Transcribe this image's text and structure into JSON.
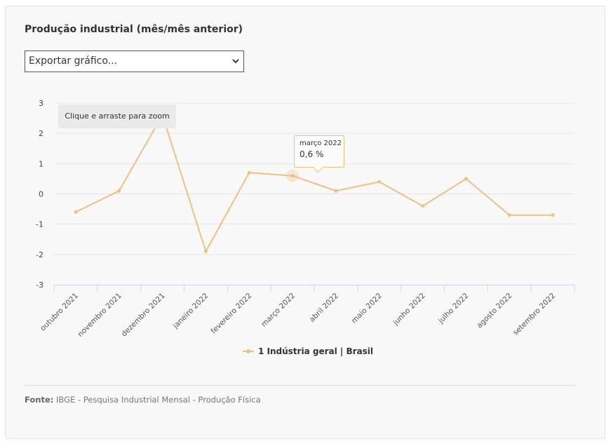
{
  "title": "Produção industrial (mês/mês anterior)",
  "export_select": {
    "selected": "Exportar gráfico...",
    "icon": "chevron-down-icon"
  },
  "zoom_hint": "Clique e arraste para zoom",
  "tooltip": {
    "label": "março 2022",
    "value": "0,6 %"
  },
  "legend": {
    "label": "1 Indústria geral | Brasil"
  },
  "source": {
    "label": "Fonte:",
    "text": " IBGE - Pesquisa Industrial Mensal - Produção Física"
  },
  "colors": {
    "series": "#efc07e",
    "grid": "#e6e6e6",
    "axis": "#ccd6eb",
    "card": "#f8f8f8"
  },
  "chart_data": {
    "type": "line",
    "title": "Produção industrial (mês/mês anterior)",
    "xlabel": "",
    "ylabel": "",
    "ylim": [
      -3,
      3
    ],
    "yticks": [
      3,
      2,
      1,
      0,
      -1,
      -2,
      -3
    ],
    "ytick_labels": [
      "3",
      "2",
      "1",
      "0",
      "-1",
      "-2",
      "-3"
    ],
    "grid": true,
    "legend_position": "bottom-center",
    "categories": [
      "outubro 2021",
      "novembro 2021",
      "dezembro 2021",
      "janeiro 2022",
      "fevereiro 2022",
      "março 2022",
      "abril 2022",
      "maio 2022",
      "junho 2022",
      "julho 2022",
      "agosto 2022",
      "setembro 2022"
    ],
    "series": [
      {
        "name": "1 Indústria geral | Brasil",
        "values": [
          -0.6,
          0.1,
          2.6,
          -1.9,
          0.7,
          0.6,
          0.1,
          0.4,
          -0.4,
          0.5,
          -0.7,
          -0.7
        ]
      }
    ],
    "highlighted_index": 5
  }
}
